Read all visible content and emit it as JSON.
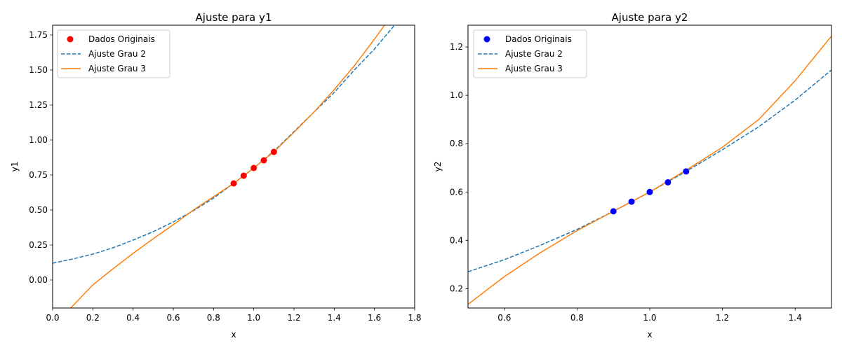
{
  "colors": {
    "scatter1": "#ff0000",
    "scatter2": "#0000ff",
    "fit2": "#1f77b4",
    "fit3": "#ff7f0e"
  },
  "chart_data": [
    {
      "type": "line",
      "title": "Ajuste para y1",
      "xlabel": "x",
      "ylabel": "y1",
      "xlim": [
        0.0,
        1.8
      ],
      "ylim": [
        -0.2,
        1.82
      ],
      "xticks": [
        "0.0",
        "0.2",
        "0.4",
        "0.6",
        "0.8",
        "1.0",
        "1.2",
        "1.4",
        "1.6",
        "1.8"
      ],
      "yticks": [
        "0.00",
        "0.25",
        "0.50",
        "0.75",
        "1.00",
        "1.25",
        "1.50",
        "1.75"
      ],
      "grid": false,
      "legend_position": "top-left",
      "series": [
        {
          "name": "Dados Originais",
          "kind": "scatter",
          "color": "#ff0000",
          "x": [
            0.9,
            0.95,
            1.0,
            1.05,
            1.1
          ],
          "y": [
            0.69,
            0.745,
            0.8,
            0.855,
            0.915
          ]
        },
        {
          "name": "Ajuste Grau 2",
          "kind": "line",
          "style": "dashed",
          "color": "#1f77b4",
          "x": [
            0.0,
            0.1,
            0.2,
            0.3,
            0.4,
            0.5,
            0.6,
            0.7,
            0.8,
            0.9,
            1.0,
            1.1,
            1.2,
            1.3,
            1.4,
            1.5,
            1.6,
            1.7
          ],
          "y": [
            0.12,
            0.15,
            0.185,
            0.23,
            0.285,
            0.345,
            0.415,
            0.495,
            0.585,
            0.69,
            0.8,
            0.92,
            1.06,
            1.2,
            1.34,
            1.5,
            1.65,
            1.82
          ]
        },
        {
          "name": "Ajuste Grau 3",
          "kind": "line",
          "style": "solid",
          "color": "#ff7f0e",
          "x": [
            0.09,
            0.2,
            0.3,
            0.4,
            0.5,
            0.6,
            0.7,
            0.8,
            0.9,
            1.0,
            1.1,
            1.2,
            1.3,
            1.4,
            1.5,
            1.6,
            1.65
          ],
          "y": [
            -0.2,
            -0.035,
            0.08,
            0.19,
            0.295,
            0.395,
            0.5,
            0.595,
            0.69,
            0.8,
            0.915,
            1.055,
            1.2,
            1.36,
            1.53,
            1.72,
            1.82
          ]
        }
      ]
    },
    {
      "type": "line",
      "title": "Ajuste para y2",
      "xlabel": "x",
      "ylabel": "y2",
      "xlim": [
        0.5,
        1.5
      ],
      "ylim": [
        0.12,
        1.29
      ],
      "xticks": [
        "0.6",
        "0.8",
        "1.0",
        "1.2",
        "1.4"
      ],
      "yticks": [
        "0.2",
        "0.4",
        "0.6",
        "0.8",
        "1.0",
        "1.2"
      ],
      "grid": false,
      "legend_position": "top-left",
      "series": [
        {
          "name": "Dados Originais",
          "kind": "scatter",
          "color": "#0000ff",
          "x": [
            0.9,
            0.95,
            1.0,
            1.05,
            1.1
          ],
          "y": [
            0.52,
            0.56,
            0.6,
            0.64,
            0.685
          ]
        },
        {
          "name": "Ajuste Grau 2",
          "kind": "line",
          "style": "dashed",
          "color": "#1f77b4",
          "x": [
            0.5,
            0.6,
            0.7,
            0.8,
            0.9,
            1.0,
            1.1,
            1.2,
            1.3,
            1.4,
            1.5
          ],
          "y": [
            0.27,
            0.32,
            0.38,
            0.445,
            0.52,
            0.6,
            0.685,
            0.775,
            0.87,
            0.98,
            1.105
          ]
        },
        {
          "name": "Ajuste Grau 3",
          "kind": "line",
          "style": "solid",
          "color": "#ff7f0e",
          "x": [
            0.5,
            0.6,
            0.7,
            0.8,
            0.9,
            1.0,
            1.1,
            1.2,
            1.3,
            1.4,
            1.5
          ],
          "y": [
            0.135,
            0.25,
            0.35,
            0.44,
            0.52,
            0.6,
            0.69,
            0.785,
            0.9,
            1.06,
            1.245
          ]
        }
      ]
    }
  ]
}
